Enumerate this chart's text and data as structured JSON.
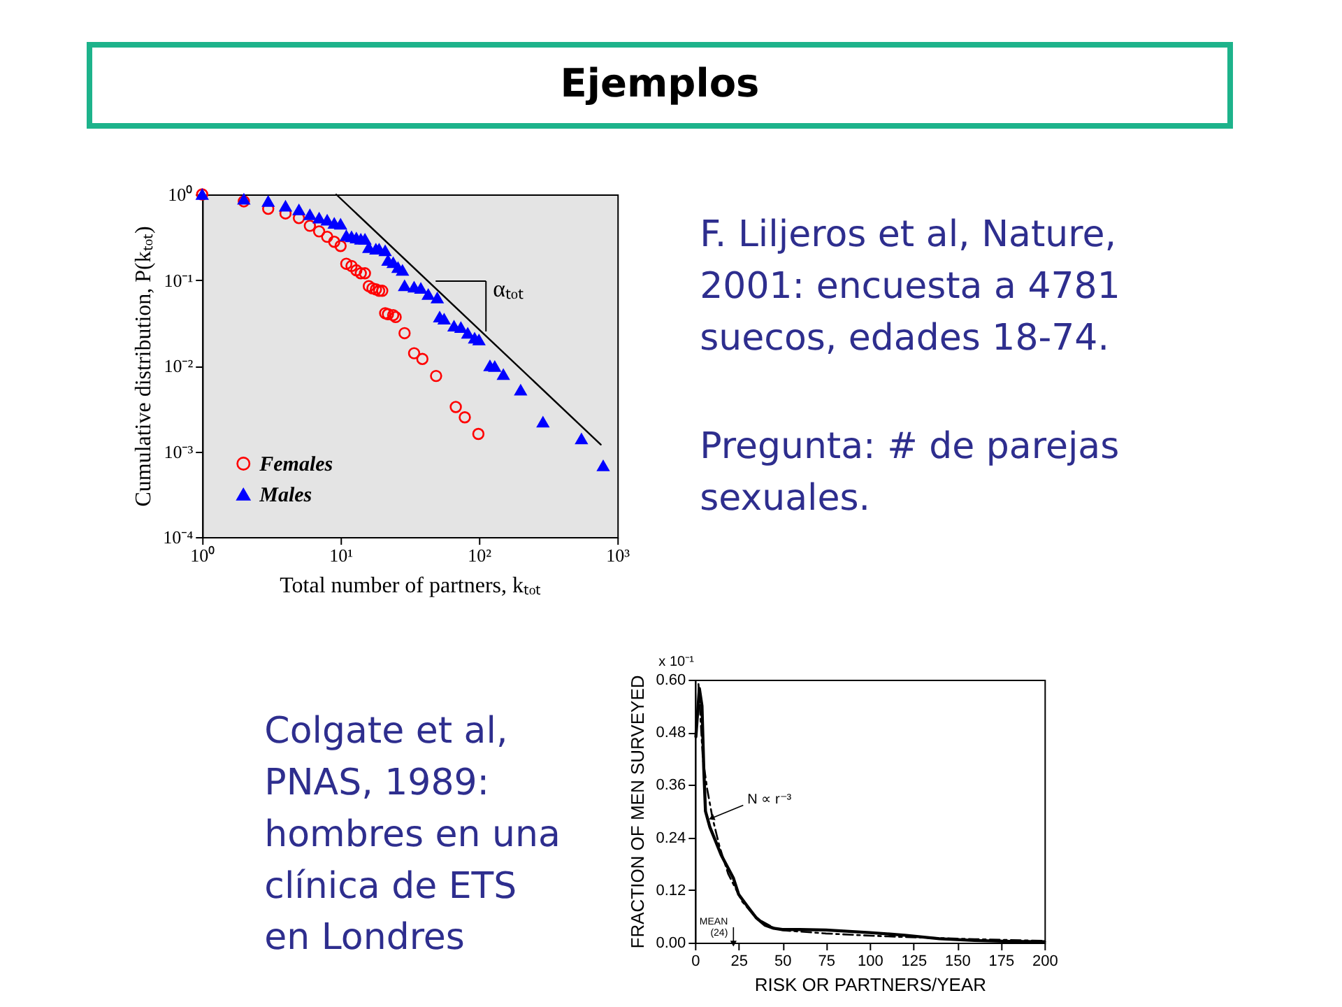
{
  "chart_data": [
    {
      "type": "other",
      "title": "Ejemplos"
    },
    {
      "type": "scatter",
      "xlabel": "Total number of partners, kₜₒₜ",
      "ylabel": "Cumulative distribution, P(kₜₒₜ)",
      "log": "xy",
      "xlim": [
        1,
        1000
      ],
      "ylim": [
        0.0001,
        1
      ],
      "xticks": [
        {
          "value": 1,
          "label": "10⁰"
        },
        {
          "value": 10,
          "label": "10¹"
        },
        {
          "value": 100,
          "label": "10²"
        },
        {
          "value": 1000,
          "label": "10³"
        }
      ],
      "yticks": [
        {
          "value": 0.0001,
          "label": "10⁻⁴"
        },
        {
          "value": 0.001,
          "label": "10⁻³"
        },
        {
          "value": 0.01,
          "label": "10⁻²"
        },
        {
          "value": 0.1,
          "label": "10⁻¹"
        },
        {
          "value": 1,
          "label": "10⁰"
        }
      ],
      "legend": "bottom left",
      "annotations": [
        "αₜₒₜ"
      ],
      "series": [
        {
          "type": "line",
          "color": "#000000",
          "x": [
            9.3,
            760
          ],
          "values": [
            1,
            0.0012
          ]
        },
        {
          "name": "Females",
          "color": "#ff0000",
          "marker": "circle",
          "x": [
            1,
            2,
            3,
            4,
            5,
            6,
            7,
            8,
            9,
            10,
            11,
            12,
            13,
            14,
            15,
            16,
            17,
            18,
            19,
            20,
            21,
            22,
            24,
            25,
            29,
            34,
            39,
            49,
            68,
            79,
            99
          ],
          "values": [
            1,
            0.83,
            0.68,
            0.6,
            0.53,
            0.43,
            0.37,
            0.32,
            0.28,
            0.25,
            0.155,
            0.146,
            0.13,
            0.12,
            0.12,
            0.085,
            0.08,
            0.078,
            0.075,
            0.075,
            0.041,
            0.04,
            0.039,
            0.037,
            0.024,
            0.014,
            0.012,
            0.0076,
            0.0033,
            0.0025,
            0.0016
          ]
        },
        {
          "name": "Males",
          "color": "#0000ff",
          "marker": "triangle",
          "x": [
            1,
            2,
            3,
            4,
            5,
            6,
            7,
            8,
            9,
            10,
            11,
            12,
            13,
            14,
            15,
            16,
            18,
            19,
            21,
            22,
            24,
            26,
            28,
            29,
            34,
            38,
            43,
            50,
            52,
            56,
            66,
            74,
            83,
            93,
            100,
            120,
            130,
            150,
            200,
            290,
            550,
            790
          ],
          "values": [
            1,
            0.88,
            0.83,
            0.73,
            0.66,
            0.58,
            0.53,
            0.5,
            0.46,
            0.45,
            0.33,
            0.32,
            0.31,
            0.3,
            0.3,
            0.24,
            0.23,
            0.23,
            0.22,
            0.17,
            0.16,
            0.14,
            0.13,
            0.086,
            0.083,
            0.08,
            0.068,
            0.062,
            0.037,
            0.035,
            0.029,
            0.028,
            0.024,
            0.021,
            0.02,
            0.01,
            0.0098,
            0.0079,
            0.0052,
            0.0022,
            0.0014,
            0.00068
          ]
        }
      ]
    },
    {
      "type": "other",
      "annotations": [
        "F. Liljeros et al, Nature, 2001: encuesta a 4781 suecos, edades 18-74.",
        "Pregunta: # de parejas sexuales."
      ]
    },
    {
      "type": "other",
      "annotations": [
        "Colgate et al, PNAS, 1989: hombres en una clínica de ETS en Londres"
      ]
    },
    {
      "type": "line",
      "xlabel": "RISK OR PARTNERS/YEAR",
      "ylabel": "FRACTION OF MEN SURVEYED",
      "xlim": [
        0,
        200
      ],
      "xticks": [
        0,
        25,
        50,
        75,
        100,
        125,
        150,
        175,
        200
      ],
      "ylim": [
        0,
        0.6
      ],
      "yticks": [
        {
          "value": 0,
          "label": "0.00"
        },
        0.12,
        0.24,
        0.36,
        0.48,
        {
          "value": 0.6,
          "label": "0.60"
        }
      ],
      "annotations": [
        "x 10⁻¹",
        {
          "text": "N ∝ r⁻³",
          "x": 10,
          "y": 0.285
        },
        {
          "text": "MEAN\n(24)",
          "x": 22,
          "y": 0
        }
      ],
      "series": [
        {
          "color": "#000000",
          "x": [
            0.5,
            2.5,
            4,
            5,
            6,
            8.5,
            15,
            22,
            25,
            30,
            35,
            40,
            45,
            50,
            60,
            75,
            100,
            120,
            140,
            160,
            180,
            200
          ],
          "values": [
            0.47,
            0.58,
            0.54,
            0.4,
            0.3,
            0.264,
            0.2,
            0.147,
            0.11,
            0.083,
            0.057,
            0.04,
            0.033,
            0.03,
            0.03,
            0.029,
            0.023,
            0.017,
            0.009,
            0.005,
            0.003,
            0.002
          ]
        },
        {
          "color": "#000000",
          "line_style": "dashed",
          "x": [
            2,
            4.5,
            7,
            10,
            14,
            19,
            27,
            35,
            46,
            51,
            75,
            100,
            126,
            160,
            200
          ],
          "values": [
            0.59,
            0.42,
            0.35,
            0.285,
            0.22,
            0.157,
            0.094,
            0.056,
            0.032,
            0.028,
            0.021,
            0.016,
            0.012,
            0.008,
            0.004
          ]
        }
      ]
    }
  ]
}
